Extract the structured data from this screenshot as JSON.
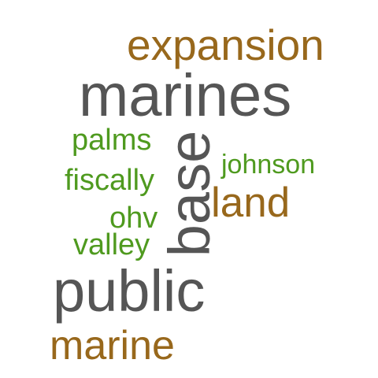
{
  "word_cloud": {
    "words": {
      "expansion": "expansion",
      "marines": "marines",
      "palms": "palms",
      "johnson": "johnson",
      "fiscally": "fiscally",
      "base": "base",
      "land": "land",
      "ohv": "ohv",
      "valley": "valley",
      "public": "public",
      "marine": "marine"
    },
    "colors": {
      "brown": "#98681c",
      "gray": "#555555",
      "green": "#4f9a1f"
    }
  }
}
